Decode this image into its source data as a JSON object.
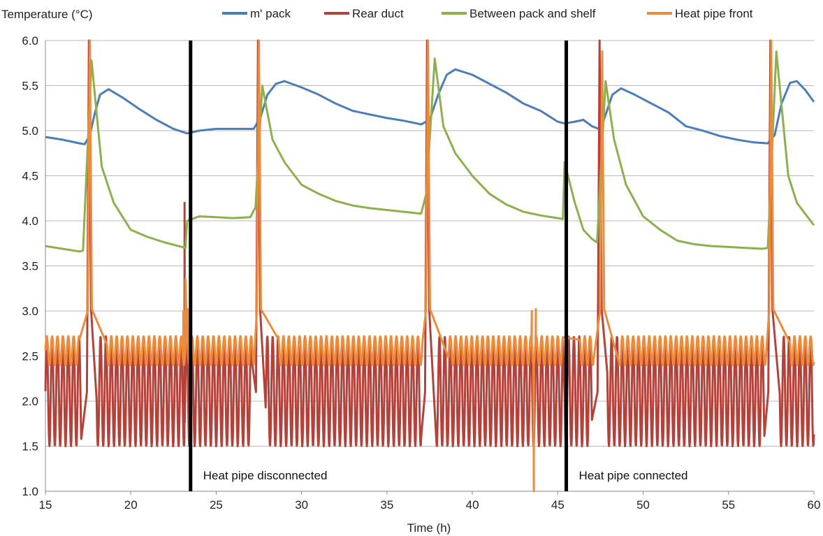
{
  "chart_data": {
    "type": "line",
    "ylabel": "Temperature (°C)",
    "xlabel": "Time (h)",
    "xlim": [
      15,
      60
    ],
    "ylim": [
      1.0,
      6.0
    ],
    "x_ticks": [
      15,
      20,
      25,
      30,
      35,
      40,
      45,
      50,
      55,
      60
    ],
    "y_ticks": [
      1.0,
      1.5,
      2.0,
      2.5,
      3.0,
      3.5,
      4.0,
      4.5,
      5.0,
      5.5,
      6.0
    ],
    "x_tick_labels": [
      "15",
      "20",
      "25",
      "30",
      "35",
      "40",
      "45",
      "50",
      "55",
      "60"
    ],
    "y_tick_labels": [
      "1.0",
      "1.5",
      "2.0",
      "2.5",
      "3.0",
      "3.5",
      "4.0",
      "4.5",
      "5.0",
      "5.5",
      "6.0"
    ],
    "grid": "horizontal",
    "legend_position": "top",
    "defrost_times": [
      17.5,
      27.4,
      37.3,
      47.4,
      57.4
    ],
    "series": [
      {
        "name": "m' pack",
        "color": "#4a7ebb",
        "oscillation": null,
        "points": [
          [
            15,
            4.93
          ],
          [
            16,
            4.9
          ],
          [
            17,
            4.86
          ],
          [
            17.3,
            4.85
          ],
          [
            17.6,
            4.95
          ],
          [
            17.9,
            5.2
          ],
          [
            18.2,
            5.4
          ],
          [
            18.7,
            5.46
          ],
          [
            19.5,
            5.37
          ],
          [
            20.5,
            5.24
          ],
          [
            21.5,
            5.12
          ],
          [
            22.5,
            5.02
          ],
          [
            23.3,
            4.97
          ],
          [
            24,
            5.0
          ],
          [
            25,
            5.02
          ],
          [
            26,
            5.02
          ],
          [
            27.2,
            5.02
          ],
          [
            27.6,
            5.15
          ],
          [
            28,
            5.4
          ],
          [
            28.5,
            5.52
          ],
          [
            29,
            5.55
          ],
          [
            30,
            5.48
          ],
          [
            31,
            5.4
          ],
          [
            32,
            5.3
          ],
          [
            33,
            5.22
          ],
          [
            34,
            5.18
          ],
          [
            35,
            5.14
          ],
          [
            36,
            5.11
          ],
          [
            37,
            5.07
          ],
          [
            37.5,
            5.12
          ],
          [
            38,
            5.4
          ],
          [
            38.5,
            5.62
          ],
          [
            39,
            5.68
          ],
          [
            40,
            5.62
          ],
          [
            41,
            5.52
          ],
          [
            42,
            5.42
          ],
          [
            43,
            5.3
          ],
          [
            44,
            5.22
          ],
          [
            45,
            5.1
          ],
          [
            45.4,
            5.08
          ],
          [
            46,
            5.1
          ],
          [
            46.5,
            5.12
          ],
          [
            47,
            5.05
          ],
          [
            47.4,
            5.02
          ],
          [
            47.7,
            5.12
          ],
          [
            48.2,
            5.4
          ],
          [
            48.7,
            5.47
          ],
          [
            49.5,
            5.4
          ],
          [
            50.5,
            5.3
          ],
          [
            51.5,
            5.2
          ],
          [
            52.5,
            5.05
          ],
          [
            53.5,
            5.0
          ],
          [
            54.5,
            4.94
          ],
          [
            55.5,
            4.9
          ],
          [
            56.5,
            4.87
          ],
          [
            57.3,
            4.86
          ],
          [
            57.7,
            4.95
          ],
          [
            58.1,
            5.3
          ],
          [
            58.6,
            5.53
          ],
          [
            59,
            5.55
          ],
          [
            59.5,
            5.45
          ],
          [
            60,
            5.32
          ]
        ]
      },
      {
        "name": "Rear duct",
        "color": "#b4423b",
        "oscillation": {
          "period": 0.315,
          "low": 1.5,
          "high": 2.72
        },
        "oscillation_segments": [
          [
            15,
            17.1
          ],
          [
            18,
            23.2
          ],
          [
            23.3,
            27.1
          ],
          [
            27.9,
            37.0
          ],
          [
            37.9,
            45.3
          ],
          [
            45.4,
            47.0
          ],
          [
            47.9,
            57.1
          ],
          [
            58.0,
            60
          ]
        ],
        "spikes": [
          [
            17.55,
            6.3
          ],
          [
            27.45,
            6.3
          ],
          [
            37.35,
            6.3
          ],
          [
            47.45,
            6.3
          ],
          [
            57.45,
            6.3
          ],
          [
            23.15,
            4.2
          ]
        ],
        "points": []
      },
      {
        "name": "Between pack and shelf",
        "color": "#8db04f",
        "oscillation": null,
        "points": [
          [
            15,
            3.72
          ],
          [
            16,
            3.69
          ],
          [
            17,
            3.66
          ],
          [
            17.2,
            3.67
          ],
          [
            17.7,
            5.78
          ],
          [
            18.3,
            4.6
          ],
          [
            19,
            4.2
          ],
          [
            20,
            3.9
          ],
          [
            21,
            3.82
          ],
          [
            22,
            3.76
          ],
          [
            23.2,
            3.7
          ],
          [
            23.3,
            4.0
          ],
          [
            24,
            4.05
          ],
          [
            25,
            4.04
          ],
          [
            26,
            4.03
          ],
          [
            27,
            4.04
          ],
          [
            27.3,
            4.15
          ],
          [
            27.7,
            5.5
          ],
          [
            28.3,
            4.9
          ],
          [
            29,
            4.65
          ],
          [
            30,
            4.4
          ],
          [
            31,
            4.3
          ],
          [
            32,
            4.22
          ],
          [
            33,
            4.17
          ],
          [
            34,
            4.14
          ],
          [
            35,
            4.12
          ],
          [
            36,
            4.1
          ],
          [
            37,
            4.08
          ],
          [
            37.3,
            4.3
          ],
          [
            37.8,
            5.8
          ],
          [
            38.3,
            5.05
          ],
          [
            39,
            4.75
          ],
          [
            40,
            4.5
          ],
          [
            41,
            4.3
          ],
          [
            42,
            4.18
          ],
          [
            43,
            4.1
          ],
          [
            44,
            4.06
          ],
          [
            45,
            4.03
          ],
          [
            45.3,
            4.02
          ],
          [
            45.4,
            4.65
          ],
          [
            46,
            4.2
          ],
          [
            46.5,
            3.9
          ],
          [
            47,
            3.8
          ],
          [
            47.3,
            3.76
          ],
          [
            47.8,
            5.55
          ],
          [
            48.3,
            4.9
          ],
          [
            49,
            4.4
          ],
          [
            50,
            4.05
          ],
          [
            51,
            3.9
          ],
          [
            52,
            3.78
          ],
          [
            53,
            3.74
          ],
          [
            54,
            3.72
          ],
          [
            55,
            3.71
          ],
          [
            56,
            3.7
          ],
          [
            57,
            3.69
          ],
          [
            57.3,
            3.7
          ],
          [
            57.8,
            5.88
          ],
          [
            58.5,
            4.5
          ],
          [
            59,
            4.2
          ],
          [
            60,
            3.95
          ]
        ]
      },
      {
        "name": "Heat pipe front",
        "color": "#ee8b3a",
        "oscillation": {
          "period": 0.315,
          "low": 2.4,
          "high": 2.72
        },
        "oscillation_segments": [
          [
            15,
            17.0
          ],
          [
            18.6,
            23.2
          ],
          [
            23.3,
            27.2
          ],
          [
            28.6,
            37.1
          ],
          [
            38.6,
            45.3
          ],
          [
            46.3,
            47.1
          ],
          [
            48.6,
            57.2
          ],
          [
            58.6,
            60
          ]
        ],
        "spikes": [
          [
            17.6,
            6.3
          ],
          [
            27.5,
            6.3
          ],
          [
            37.4,
            6.3
          ],
          [
            47.6,
            5.88
          ],
          [
            57.5,
            6.3
          ],
          [
            23.2,
            3.35
          ],
          [
            43.6,
            1.0
          ]
        ],
        "points": []
      }
    ],
    "annotations": [
      {
        "text": "Heat pipe disconnected",
        "x": 23.5
      },
      {
        "text": "Heat pipe connected",
        "x": 45.5
      }
    ]
  }
}
